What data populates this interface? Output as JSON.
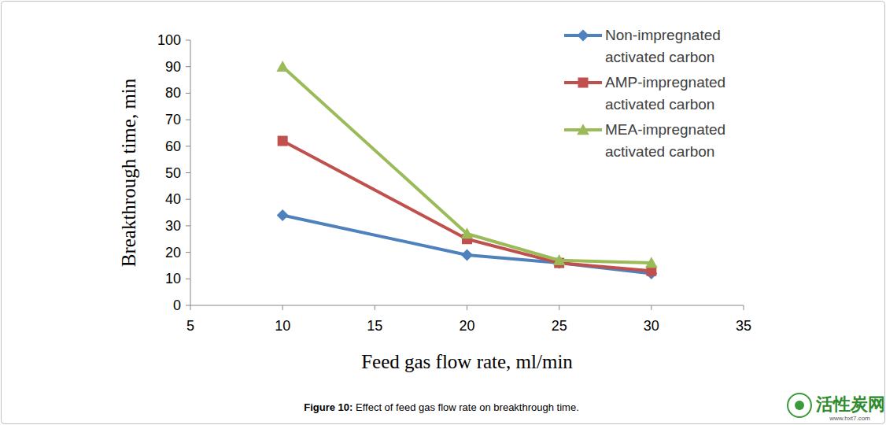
{
  "chart_data": {
    "type": "line",
    "title": "Figure 10: Effect of feed gas flow rate on breakthrough time.",
    "x_label": "Feed gas flow rate, ml/min",
    "y_label": "Breakthrough time, min",
    "x": [
      10,
      20,
      25,
      30
    ],
    "series": [
      {
        "name": "Non-impregnated activated carbon",
        "color": "#4f81bd",
        "marker": "diamond",
        "values": [
          34,
          19,
          16,
          12
        ]
      },
      {
        "name": "AMP-impregnated activated carbon",
        "color": "#c0504d",
        "marker": "square",
        "values": [
          62,
          25,
          16,
          13
        ]
      },
      {
        "name": "MEA-impregnated activated carbon",
        "color": "#9bbb59",
        "marker": "triangle",
        "values": [
          90,
          27,
          17,
          16
        ]
      }
    ],
    "xlim": [
      5,
      35
    ],
    "xticks": [
      5,
      10,
      15,
      20,
      25,
      30,
      35
    ],
    "ylim": [
      0,
      100
    ],
    "yticks": [
      0,
      10,
      20,
      30,
      40,
      50,
      60,
      70,
      80,
      90,
      100
    ],
    "grid": false,
    "legend": "top-right",
    "annotations": [
      "活性炭网",
      "www.hxt7.com"
    ]
  }
}
